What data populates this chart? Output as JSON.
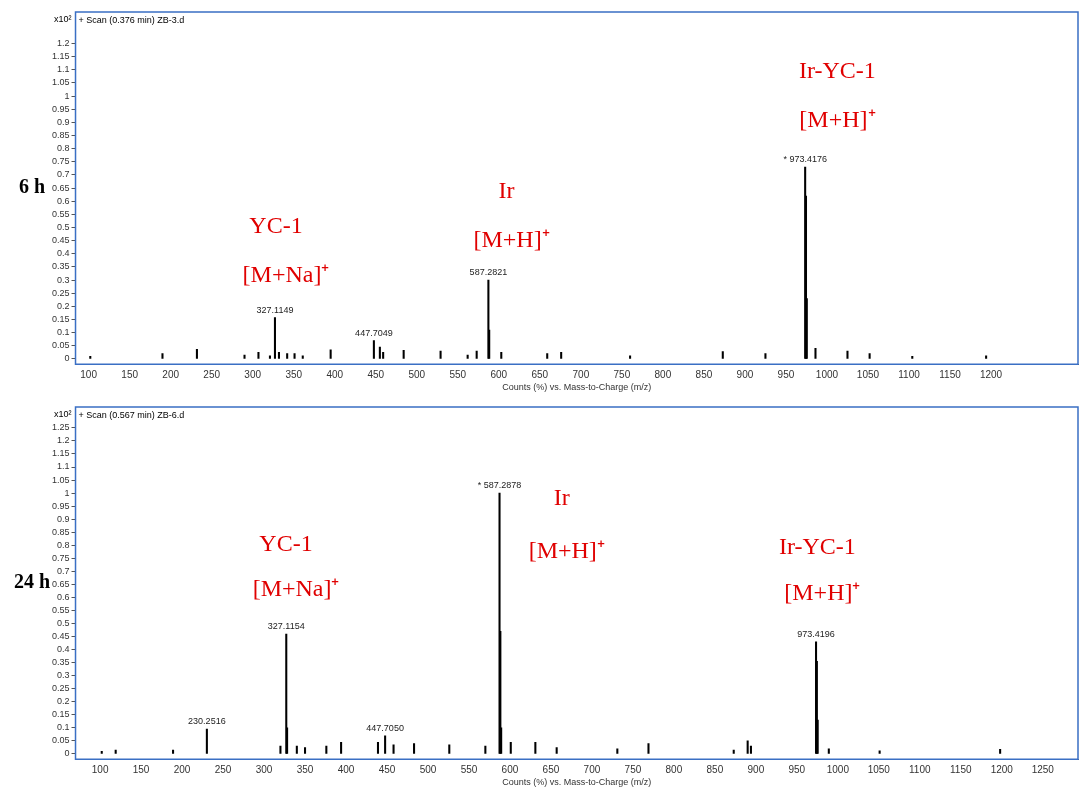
{
  "chart_data": [
    {
      "type": "bar",
      "title": "6 h",
      "subtitle": "+ Scan (0.376 min) ZB-3.d",
      "xlabel": "Counts (%) vs. Mass-to-Charge (m/z)",
      "ylabel": "x10²",
      "xlim": [
        84,
        1306
      ],
      "ylim": [
        -0.02,
        1.32
      ],
      "xticks": [
        100,
        150,
        200,
        250,
        300,
        350,
        400,
        450,
        500,
        550,
        600,
        650,
        700,
        750,
        800,
        850,
        900,
        950,
        1000,
        1050,
        1100,
        1150,
        1200
      ],
      "yticks": [
        0,
        0.05,
        0.1,
        0.15,
        0.2,
        0.25,
        0.3,
        0.35,
        0.4,
        0.45,
        0.5,
        0.55,
        0.6,
        0.65,
        0.7,
        0.75,
        0.8,
        0.85,
        0.9,
        0.95,
        1,
        1.05,
        1.1,
        1.15,
        1.2
      ],
      "series": [
        {
          "color": "#000000",
          "x": [
            102,
            190,
            232,
            290,
            307,
            321,
            327.1149,
            332,
            342,
            351,
            361,
            395,
            447.7049,
            455,
            459,
            484,
            529,
            562,
            573,
            587.2821,
            588.28,
            603,
            659,
            676,
            760,
            873,
            925,
            973.4176,
            974.42,
            975.42,
            986,
            1025,
            1052,
            1104,
            1194
          ],
          "values": [
            0.01,
            0.02,
            0.037,
            0.015,
            0.025,
            0.012,
            0.157,
            0.025,
            0.02,
            0.02,
            0.012,
            0.035,
            0.07,
            0.045,
            0.025,
            0.033,
            0.03,
            0.015,
            0.03,
            0.3,
            0.11,
            0.025,
            0.02,
            0.025,
            0.012,
            0.028,
            0.02,
            0.73,
            0.62,
            0.23,
            0.04,
            0.03,
            0.02,
            0.01,
            0.012
          ]
        }
      ],
      "annotations": [
        {
          "text": "327.1149",
          "x": 327.1149,
          "y": 0.157
        },
        {
          "text": "447.7049",
          "x": 447.7049,
          "y": 0.07
        },
        {
          "text": "587.2821",
          "x": 587.2821,
          "y": 0.3
        },
        {
          "text": "* 973.4176",
          "x": 973.4176,
          "y": 0.73
        },
        "YC-1",
        "[M+Na]⁺",
        "Ir",
        "[M+H]⁺",
        "Ir-YC-1",
        "[M+H]⁺"
      ]
    },
    {
      "type": "bar",
      "title": "24 h",
      "subtitle": "+ Scan (0.567 min) ZB-6.d",
      "xlabel": "Counts (%) vs. Mass-to-Charge (m/z)",
      "ylabel": "x10²",
      "xlim": [
        70,
        1293
      ],
      "ylim": [
        -0.02,
        1.33
      ],
      "xticks": [
        100,
        150,
        200,
        250,
        300,
        350,
        400,
        450,
        500,
        550,
        600,
        650,
        700,
        750,
        800,
        850,
        900,
        950,
        1000,
        1050,
        1100,
        1150,
        1200,
        1250
      ],
      "yticks": [
        0,
        0.05,
        0.1,
        0.15,
        0.2,
        0.25,
        0.3,
        0.35,
        0.4,
        0.45,
        0.5,
        0.55,
        0.6,
        0.65,
        0.7,
        0.75,
        0.8,
        0.85,
        0.9,
        0.95,
        1,
        1.05,
        1.1,
        1.15,
        1.2,
        1.25
      ],
      "series": [
        {
          "color": "#000000",
          "x": [
            102,
            119,
            189,
            230.2516,
            320,
            327.1154,
            328.12,
            340,
            350,
            376,
            394,
            439,
            447.705,
            458,
            483,
            526,
            570,
            587.2878,
            588.29,
            589.29,
            601,
            631,
            657,
            731,
            769,
            873,
            890,
            894,
            973.4196,
            974.42,
            975.42,
            989,
            1051,
            1198
          ],
          "values": [
            0.01,
            0.015,
            0.015,
            0.095,
            0.03,
            0.46,
            0.1,
            0.03,
            0.025,
            0.03,
            0.045,
            0.045,
            0.07,
            0.035,
            0.04,
            0.035,
            0.03,
            1.0,
            0.47,
            0.1,
            0.045,
            0.045,
            0.025,
            0.02,
            0.04,
            0.015,
            0.05,
            0.03,
            0.43,
            0.355,
            0.13,
            0.02,
            0.012,
            0.018
          ]
        }
      ],
      "annotations": [
        {
          "text": "230.2516",
          "x": 230.2516,
          "y": 0.095
        },
        {
          "text": "327.1154",
          "x": 327.1154,
          "y": 0.46
        },
        {
          "text": "447.7050",
          "x": 447.705,
          "y": 0.07
        },
        {
          "text": "* 587.2878",
          "x": 587.2878,
          "y": 1.0
        },
        {
          "text": "973.4196",
          "x": 973.4196,
          "y": 0.43
        },
        "YC-1",
        "[M+Na]⁺",
        "Ir",
        "[M+H]⁺",
        "Ir-YC-1",
        "[M+H]⁺"
      ]
    }
  ]
}
